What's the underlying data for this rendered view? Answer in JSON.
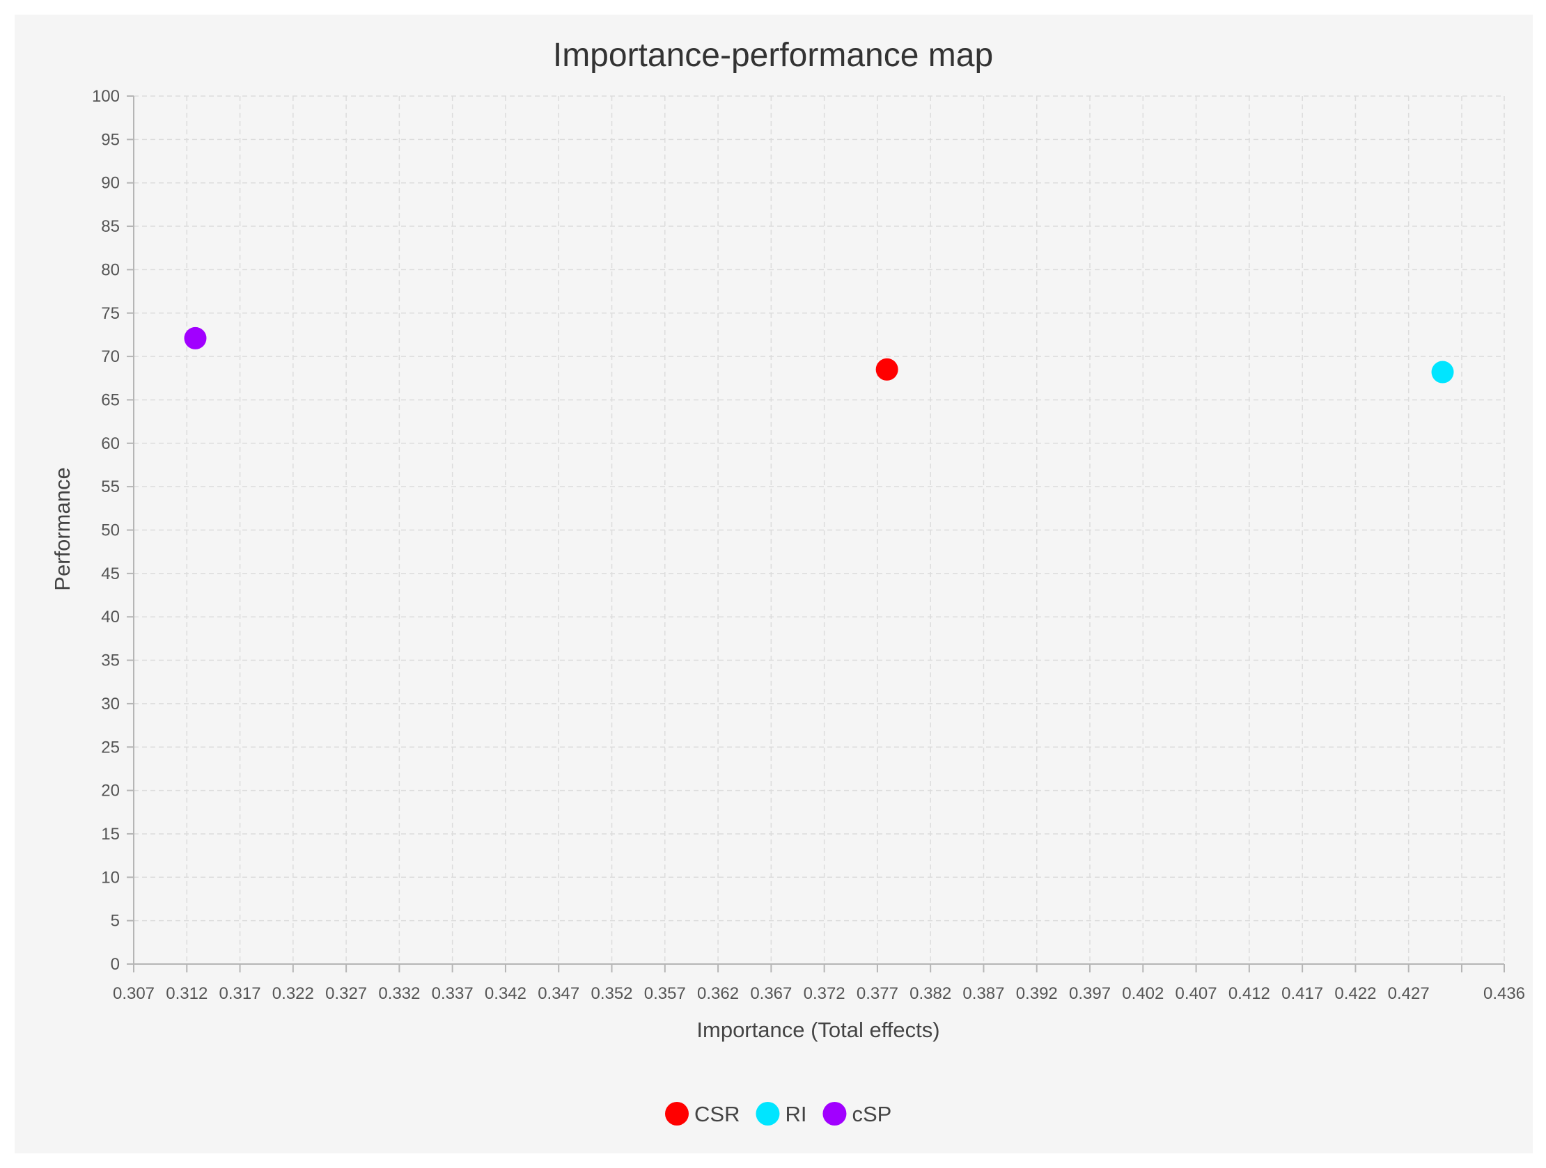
{
  "chart_data": {
    "type": "scatter",
    "title": "Importance-performance map",
    "xlabel": "Importance (Total effects)",
    "ylabel": "Performance",
    "xlim": [
      0.307,
      0.436
    ],
    "ylim": [
      0,
      100
    ],
    "x_ticks": [
      "0.307",
      "0.312",
      "0.317",
      "0.322",
      "0.327",
      "0.332",
      "0.337",
      "0.342",
      "0.347",
      "0.352",
      "0.357",
      "0.362",
      "0.367",
      "0.372",
      "0.377",
      "0.382",
      "0.387",
      "0.392",
      "0.397",
      "0.402",
      "0.407",
      "0.412",
      "0.417",
      "0.422",
      "0.427",
      "0.436"
    ],
    "y_ticks": [
      "0",
      "5",
      "10",
      "15",
      "20",
      "25",
      "30",
      "35",
      "40",
      "45",
      "50",
      "55",
      "60",
      "65",
      "70",
      "75",
      "80",
      "85",
      "90",
      "95",
      "100"
    ],
    "grid": true,
    "legend_position": "bottom-center",
    "series": [
      {
        "name": "CSR",
        "color": "#ff0000",
        "x": 0.3779,
        "y": 68.5
      },
      {
        "name": "RI",
        "color": "#00e5ff",
        "x": 0.4302,
        "y": 68.2
      },
      {
        "name": "cSP",
        "color": "#a100ff",
        "x": 0.3128,
        "y": 72.1
      }
    ]
  }
}
